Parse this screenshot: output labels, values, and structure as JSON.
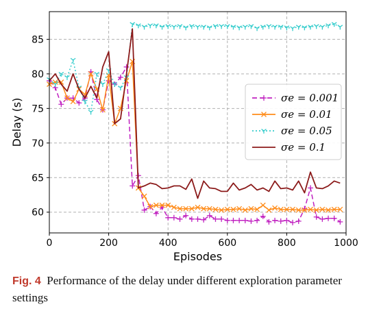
{
  "caption": {
    "fig_label": "Fig. 4",
    "text": "Performance of the delay under different exploration parameter settings"
  },
  "chart_data": {
    "type": "line",
    "xlabel": "Episodes",
    "ylabel": "Delay (s)",
    "xlim": [
      0,
      1000
    ],
    "ylim": [
      57,
      89
    ],
    "xticks": [
      0,
      200,
      400,
      600,
      800,
      1000
    ],
    "yticks": [
      60,
      65,
      70,
      75,
      80,
      85
    ],
    "grid": true,
    "legend_position": "right",
    "series": [
      {
        "name": "σe = 0.001",
        "color": "#c020c0",
        "style": "dashed",
        "marker": "plus",
        "x": [
          0,
          20,
          40,
          60,
          80,
          100,
          120,
          140,
          160,
          180,
          200,
          220,
          240,
          260,
          280,
          300,
          320,
          340,
          360,
          380,
          400,
          420,
          440,
          460,
          480,
          500,
          520,
          540,
          560,
          580,
          600,
          620,
          640,
          660,
          680,
          700,
          720,
          740,
          760,
          780,
          800,
          820,
          840,
          860,
          880,
          900,
          920,
          940,
          960,
          980
        ],
        "y": [
          79.0,
          78.0,
          75.6,
          76.5,
          76.5,
          75.8,
          76.5,
          80.3,
          76.3,
          74.8,
          79.0,
          78.5,
          79.5,
          81.0,
          63.8,
          65.3,
          60.3,
          60.8,
          59.8,
          60.7,
          59.2,
          59.2,
          59.0,
          59.5,
          59.0,
          59.0,
          58.9,
          59.5,
          59.0,
          59.0,
          58.8,
          58.8,
          58.8,
          58.8,
          58.7,
          58.8,
          59.4,
          58.6,
          58.8,
          58.7,
          58.8,
          58.5,
          58.7,
          60.5,
          63.5,
          59.3,
          59.0,
          59.1,
          59.1,
          58.6
        ]
      },
      {
        "name": "σe = 0.01",
        "color": "#ff8c1a",
        "style": "solid",
        "marker": "x",
        "x": [
          0,
          20,
          40,
          60,
          80,
          100,
          120,
          140,
          160,
          180,
          200,
          220,
          240,
          260,
          280,
          300,
          320,
          340,
          360,
          380,
          400,
          420,
          440,
          460,
          480,
          500,
          520,
          540,
          560,
          580,
          600,
          620,
          640,
          660,
          680,
          700,
          720,
          740,
          760,
          780,
          800,
          820,
          840,
          860,
          880,
          900,
          920,
          940,
          960,
          980
        ],
        "y": [
          78.5,
          78.8,
          78.8,
          76.5,
          76.0,
          77.8,
          77.0,
          80.0,
          77.8,
          74.8,
          79.8,
          72.8,
          75.0,
          79.0,
          81.8,
          63.5,
          62.3,
          60.8,
          61.0,
          61.0,
          61.0,
          60.7,
          60.5,
          60.5,
          60.5,
          60.7,
          60.5,
          60.5,
          60.4,
          60.3,
          60.4,
          60.4,
          60.5,
          60.3,
          60.5,
          60.4,
          61.0,
          60.3,
          60.6,
          60.4,
          60.4,
          60.4,
          60.3,
          60.3,
          60.4,
          60.3,
          60.4,
          60.3,
          60.4,
          60.4
        ]
      },
      {
        "name": "σe = 0.05",
        "color": "#33cccc",
        "style": "dotted",
        "marker": "tri_down",
        "x": [
          0,
          20,
          40,
          60,
          80,
          100,
          120,
          140,
          160,
          180,
          200,
          220,
          240,
          260,
          280,
          300,
          320,
          340,
          360,
          380,
          400,
          420,
          440,
          460,
          480,
          500,
          520,
          540,
          560,
          580,
          600,
          620,
          640,
          660,
          680,
          700,
          720,
          740,
          760,
          780,
          800,
          820,
          840,
          860,
          880,
          900,
          920,
          940,
          960,
          980
        ],
        "y": [
          79.2,
          78.5,
          80.0,
          79.5,
          82.0,
          78.0,
          76.0,
          74.5,
          80.0,
          78.5,
          80.5,
          78.5,
          78.0,
          79.5,
          87.2,
          87.0,
          86.8,
          87.0,
          87.0,
          86.8,
          86.9,
          86.8,
          86.9,
          86.7,
          86.9,
          86.8,
          86.8,
          86.7,
          86.9,
          86.9,
          86.9,
          86.8,
          86.7,
          86.8,
          86.9,
          86.6,
          86.8,
          86.9,
          86.8,
          86.8,
          86.7,
          86.6,
          86.8,
          86.7,
          86.8,
          86.9,
          86.8,
          87.0,
          87.2,
          86.8
        ]
      },
      {
        "name": "σe = 0.1",
        "color": "#8b1a1a",
        "style": "solid",
        "marker": "none",
        "x": [
          0,
          20,
          40,
          60,
          80,
          100,
          120,
          140,
          160,
          180,
          200,
          220,
          240,
          260,
          280,
          300,
          320,
          340,
          360,
          380,
          400,
          420,
          440,
          460,
          480,
          500,
          520,
          540,
          560,
          580,
          600,
          620,
          640,
          660,
          680,
          700,
          720,
          740,
          760,
          780,
          800,
          820,
          840,
          860,
          880,
          900,
          920,
          940,
          960,
          980
        ],
        "y": [
          79.0,
          80.0,
          78.5,
          77.5,
          80.0,
          77.8,
          76.5,
          78.2,
          76.5,
          81.0,
          83.2,
          72.8,
          73.5,
          80.0,
          86.5,
          63.5,
          63.8,
          64.2,
          64.0,
          63.4,
          63.5,
          63.8,
          63.8,
          63.3,
          64.8,
          62.0,
          64.5,
          63.5,
          63.4,
          63.0,
          63.0,
          64.2,
          63.2,
          63.5,
          64.0,
          63.2,
          63.5,
          63.0,
          64.5,
          63.4,
          63.5,
          63.2,
          64.5,
          62.8,
          65.8,
          63.5,
          63.4,
          63.8,
          64.5,
          64.2
        ]
      }
    ]
  }
}
